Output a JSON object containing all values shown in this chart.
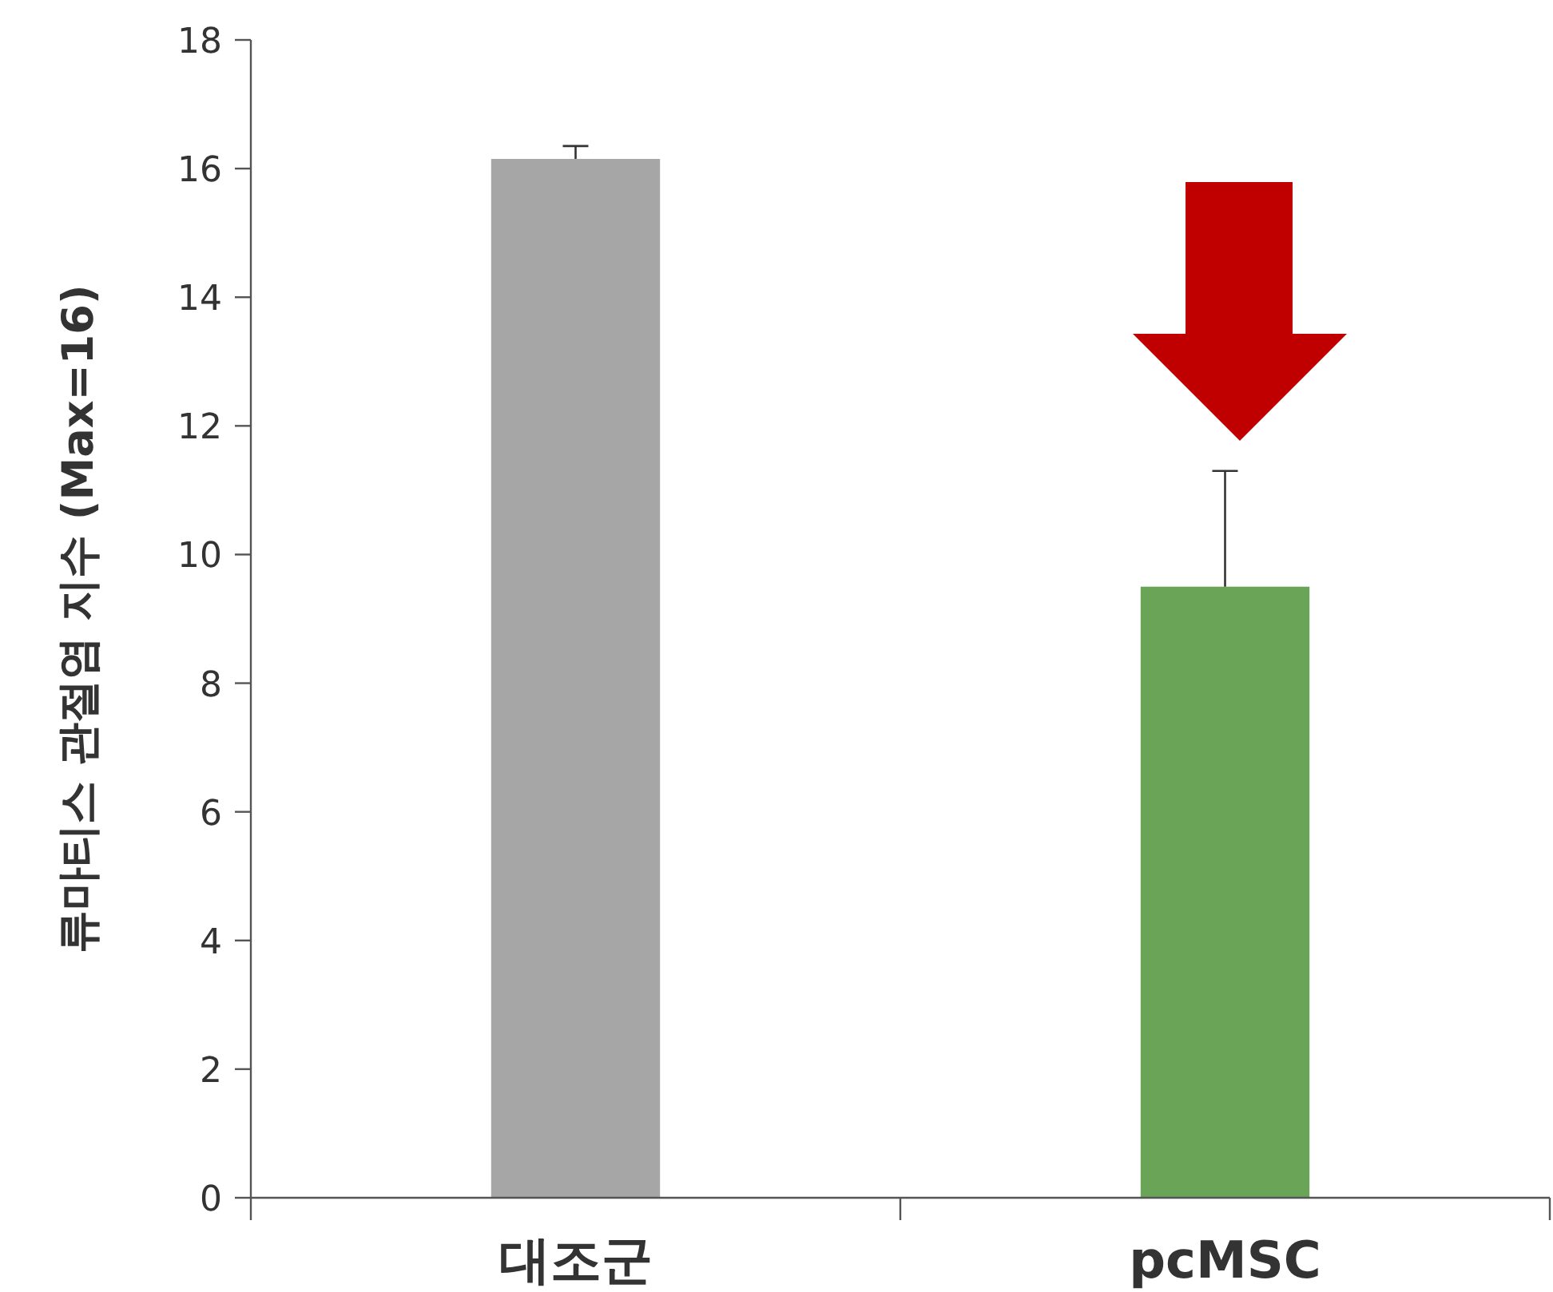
{
  "chart_data": {
    "type": "bar",
    "ylabel": "류마티스 관절염 지수 (Max=16)",
    "categories": [
      "대조군",
      "pcMSC"
    ],
    "values": [
      16.15,
      9.5
    ],
    "errors": [
      [
        16.15,
        16.35
      ],
      [
        9.5,
        11.3
      ]
    ],
    "colors": [
      "#a6a6a6",
      "#6aa457"
    ],
    "ylim": [
      0,
      18
    ],
    "yticks": [
      0,
      2,
      4,
      6,
      8,
      10,
      12,
      14,
      16,
      18
    ],
    "grid": false
  }
}
